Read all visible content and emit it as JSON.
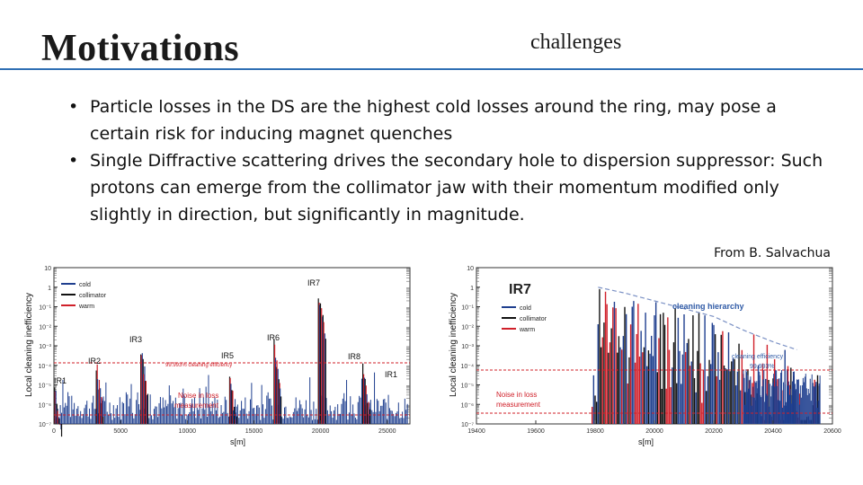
{
  "header": {
    "title": "Motivations",
    "subtitle": "challenges",
    "accent_color": "#2f6fb4"
  },
  "bullets": [
    "Particle losses in the DS are the highest cold losses around the ring, may pose a certain risk for inducing magnet quenches",
    "Single Diffractive scattering drives the secondary hole to dispersion suppressor: Such protons can emerge from the collimator jaw with their momentum modified only slightly in direction, but significantly in magnitude."
  ],
  "bullet_symbol": "•",
  "source": "From B. Salvachua",
  "chart_data": [
    {
      "type": "bar",
      "xlabel": "s[m]",
      "ylabel": "Local cleaning inefficiency",
      "xlim": [
        0,
        26700
      ],
      "x_ticks": [
        "0",
        "5000",
        "10000",
        "15000",
        "20000",
        "25000"
      ],
      "y_ticks": [
        "10",
        "1",
        "10⁻¹",
        "10⁻²",
        "10⁻³",
        "10⁻⁴",
        "10⁻⁵",
        "10⁻⁶",
        "10⁻⁷"
      ],
      "legend": [
        {
          "name": "cold",
          "color": "#1f3f8f"
        },
        {
          "name": "collimator",
          "color": "#111111"
        },
        {
          "name": "warm",
          "color": "#d0202a"
        }
      ],
      "annotations": [
        "IR7",
        "IR3",
        "IR6",
        "IR5",
        "IR8",
        "IR2",
        "IR1",
        "IR1",
        "99.993% cleaning efficiency",
        "Noise in loss",
        "measurement"
      ],
      "peaks": [
        {
          "label": "IR1",
          "s": 200,
          "exp": -4.7
        },
        {
          "label": "IR2",
          "s": 3330,
          "exp": -3.7
        },
        {
          "label": "IR3",
          "s": 6660,
          "exp": -2.8
        },
        {
          "label": "IR5",
          "s": 13330,
          "exp": -4.3
        },
        {
          "label": "IR6",
          "s": 16660,
          "exp": -2.6
        },
        {
          "label": "IR7",
          "s": 19990,
          "exp": 0.2
        },
        {
          "label": "IR8",
          "s": 23320,
          "exp": -3.8
        }
      ]
    },
    {
      "type": "bar",
      "xlabel": "s[m]",
      "ylabel": "Local cleaning inefficiency",
      "xlim": [
        19400,
        20600
      ],
      "x_ticks": [
        "19400",
        "19600",
        "19800",
        "20000",
        "20200",
        "20400",
        "20600"
      ],
      "y_ticks": [
        "10",
        "1",
        "10⁻¹",
        "10⁻²",
        "10⁻³",
        "10⁻⁴",
        "10⁻⁵",
        "10⁻⁶",
        "10⁻⁷"
      ],
      "legend": [
        {
          "name": "cold",
          "color": "#1f3f8f"
        },
        {
          "name": "collimator",
          "color": "#111111"
        },
        {
          "name": "warm",
          "color": "#d0202a"
        }
      ],
      "annotations": [
        "IR7",
        "cleaning hierarchy",
        "cleaning efficiency",
        "99.993%",
        "Noise in loss",
        "measurement"
      ],
      "envelope": [
        {
          "s": 19810,
          "exp": 0.0
        },
        {
          "s": 19900,
          "exp": -0.3
        },
        {
          "s": 20000,
          "exp": -0.7
        },
        {
          "s": 20100,
          "exp": -1.1
        },
        {
          "s": 20200,
          "exp": -1.5
        },
        {
          "s": 20300,
          "exp": -2.2
        },
        {
          "s": 20400,
          "exp": -2.8
        },
        {
          "s": 20480,
          "exp": -3.2
        }
      ]
    }
  ]
}
